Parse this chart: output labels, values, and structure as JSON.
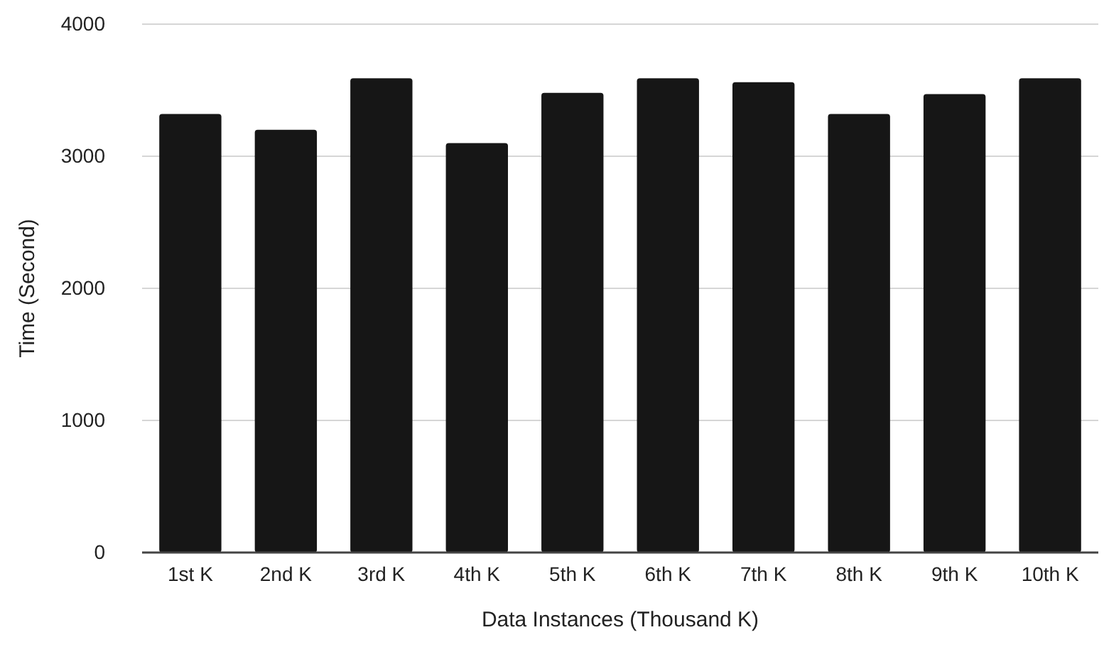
{
  "chart_data": {
    "type": "bar",
    "xlabel": "Data Instances (Thousand K)",
    "ylabel": "Time (Second)",
    "categories": [
      "1st K",
      "2nd K",
      "3rd K",
      "4th K",
      "5th K",
      "6th K",
      "7th K",
      "8th K",
      "9th K",
      "10th K"
    ],
    "values": [
      3320,
      3200,
      3590,
      3100,
      3480,
      3590,
      3560,
      3320,
      3470,
      3590
    ],
    "color": "#161616",
    "ylim": [
      0,
      4000
    ],
    "yticks": [
      0,
      1000,
      2000,
      3000,
      4000
    ],
    "grid": "y"
  }
}
